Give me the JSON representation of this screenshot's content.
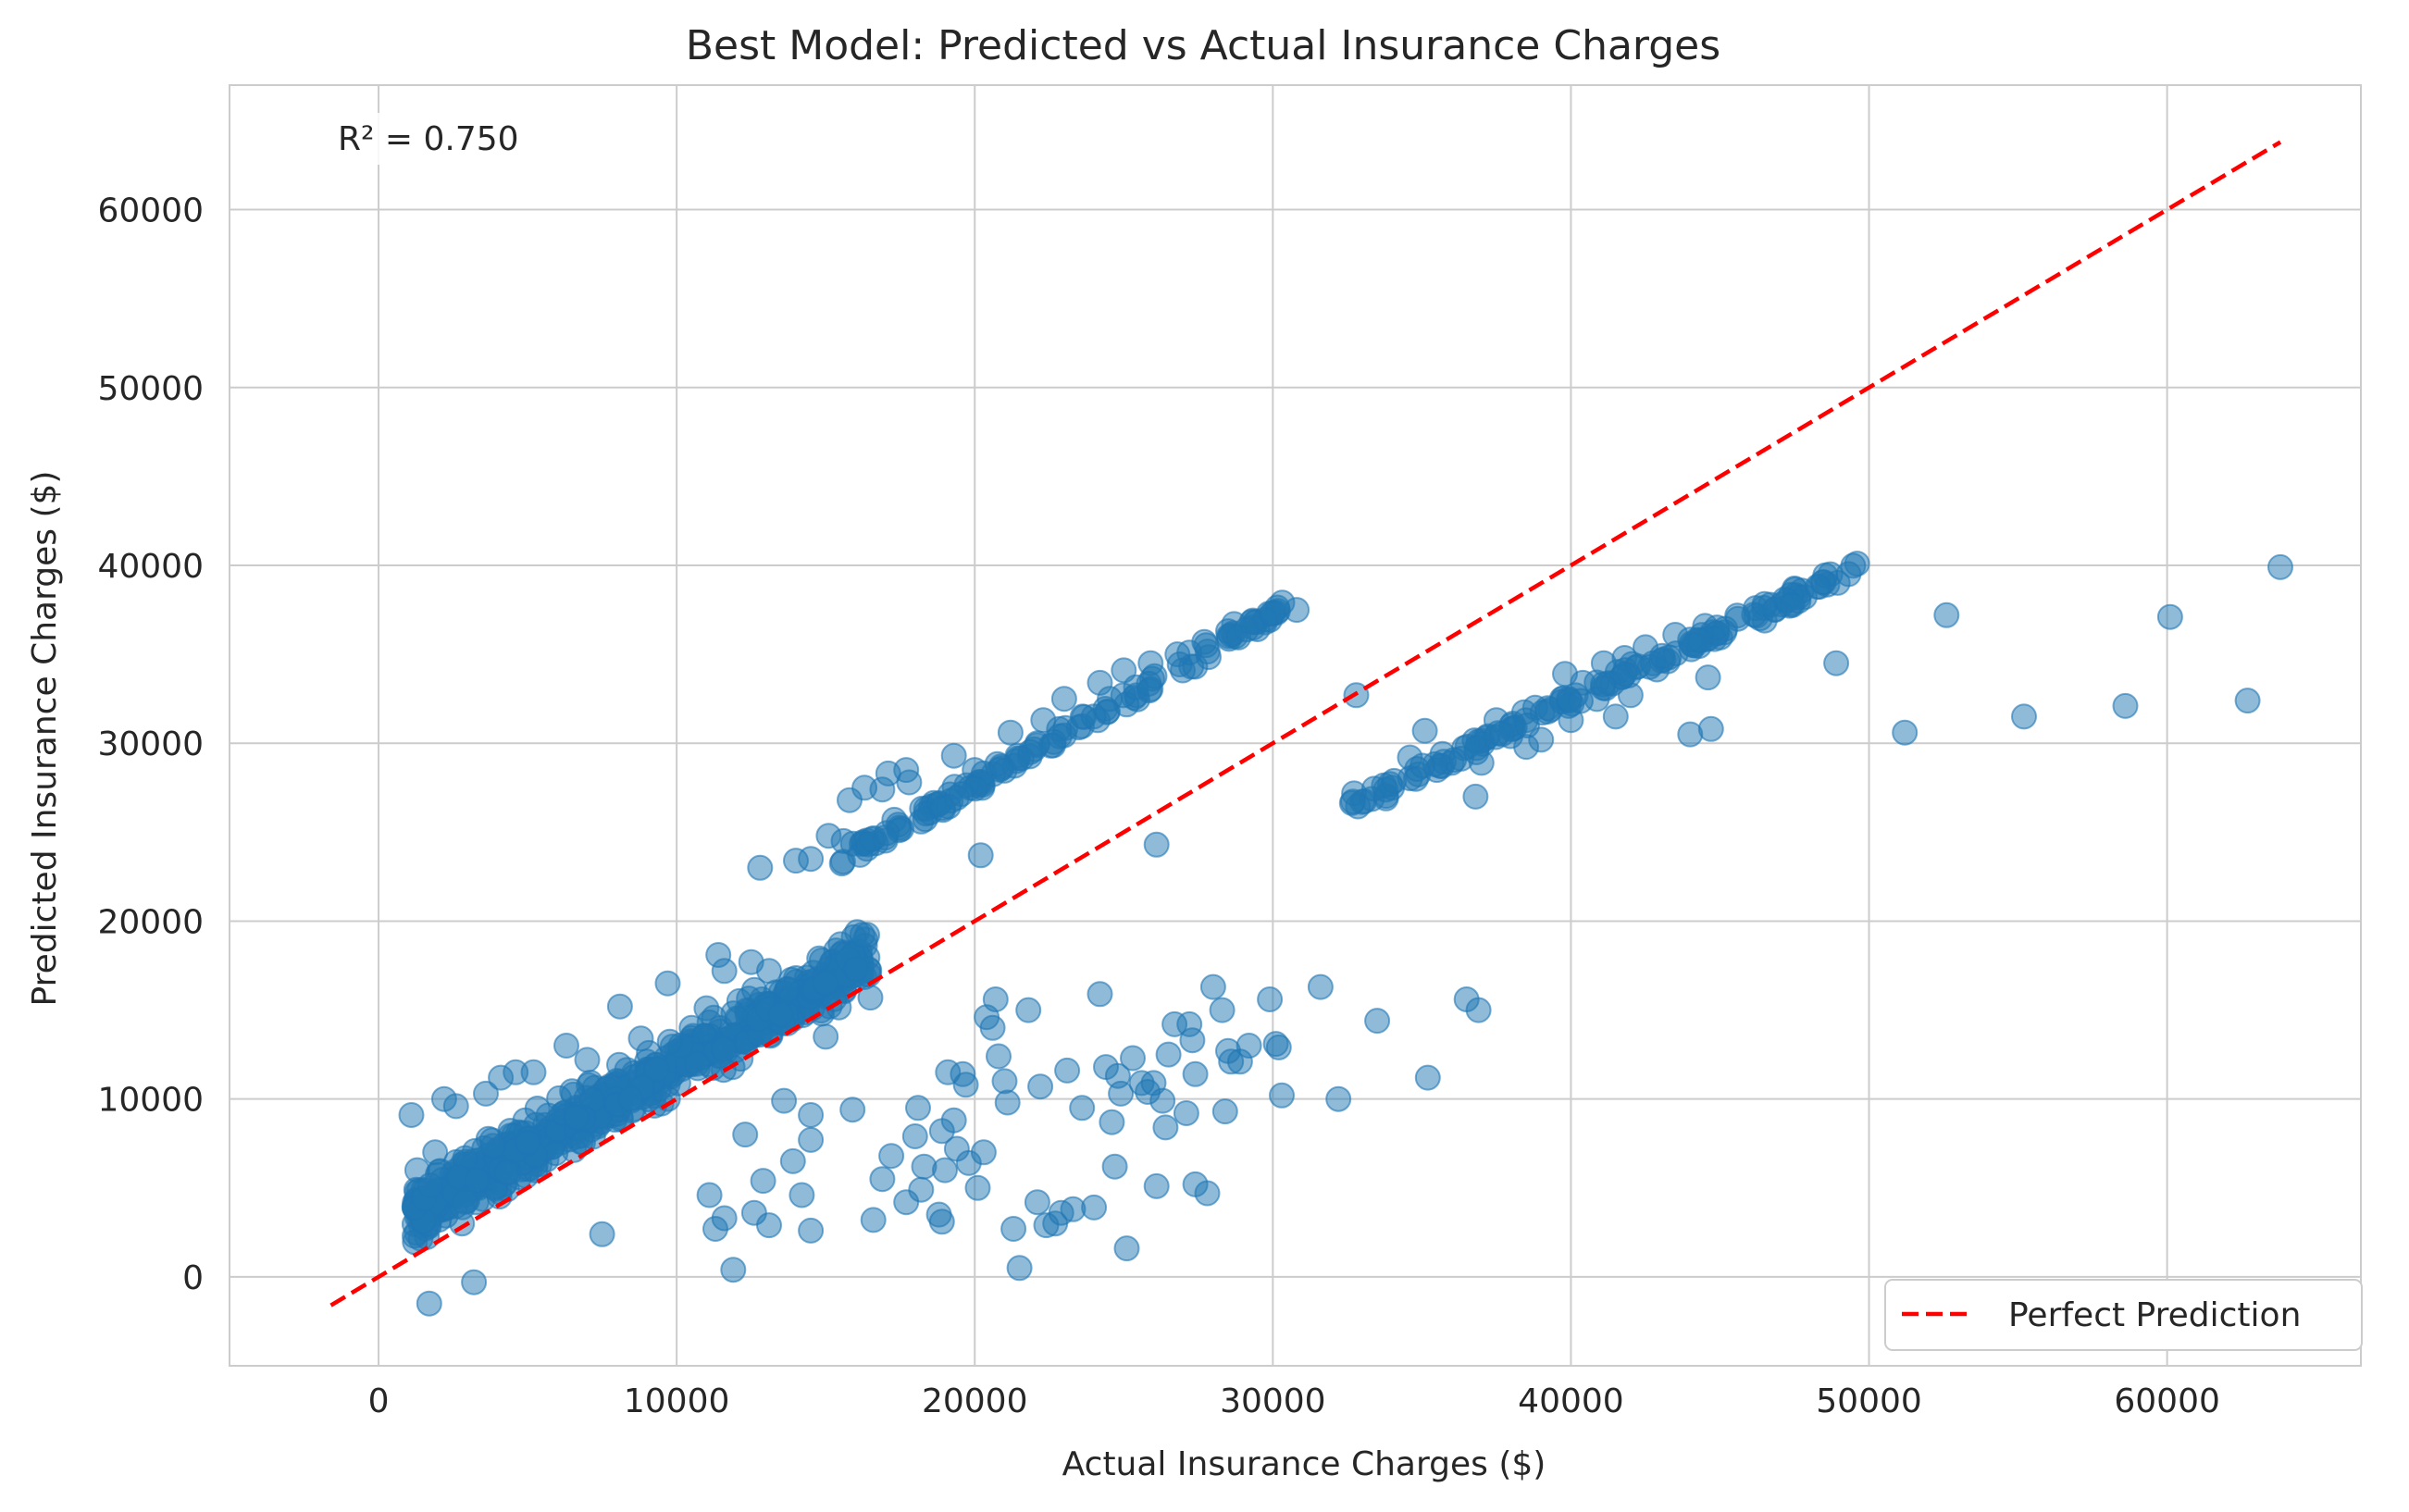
{
  "chart_data": {
    "type": "scatter",
    "title": "Best Model: Predicted vs Actual Insurance Charges",
    "xlabel": "Actual Insurance Charges ($)",
    "ylabel": "Predicted Insurance Charges ($)",
    "xlim": [
      -5000,
      66500
    ],
    "ylim": [
      -5000,
      67000
    ],
    "xticks": [
      0,
      10000,
      20000,
      30000,
      40000,
      50000,
      60000
    ],
    "yticks": [
      0,
      10000,
      20000,
      30000,
      40000,
      50000,
      60000
    ],
    "xtick_labels": [
      "0",
      "10000",
      "20000",
      "30000",
      "40000",
      "50000",
      "60000"
    ],
    "ytick_labels": [
      "0",
      "10000",
      "20000",
      "30000",
      "40000",
      "50000",
      "60000"
    ],
    "grid": true,
    "legend_position": "lower-right",
    "annotation": "R² = 0.750",
    "colors": {
      "points": "#1f77b4",
      "reference_line": "#ff0000",
      "grid": "#cccccc",
      "spine": "#cccccc"
    },
    "series": [
      {
        "kind": "points",
        "points": [
          [
            1100,
            9100
          ],
          [
            1300,
            6000
          ],
          [
            1500,
            3500
          ],
          [
            1700,
            -1500
          ],
          [
            1900,
            7000
          ],
          [
            2200,
            10000
          ],
          [
            2600,
            9600
          ],
          [
            2800,
            3000
          ],
          [
            3200,
            -300
          ],
          [
            3600,
            10300
          ],
          [
            4100,
            11200
          ],
          [
            4600,
            11500
          ],
          [
            5200,
            11500
          ],
          [
            6300,
            13000
          ],
          [
            7000,
            12200
          ],
          [
            7500,
            2400
          ],
          [
            8100,
            15200
          ],
          [
            8800,
            13400
          ],
          [
            9700,
            16500
          ],
          [
            10500,
            14000
          ],
          [
            11000,
            15100
          ],
          [
            11400,
            18100
          ],
          [
            11600,
            17200
          ],
          [
            12100,
            15500
          ],
          [
            12500,
            17700
          ],
          [
            13100,
            17200
          ],
          [
            13500,
            16000
          ],
          [
            14000,
            16800
          ],
          [
            14500,
            16000
          ],
          [
            15000,
            17000
          ],
          [
            15500,
            18700
          ],
          [
            16000,
            17500
          ],
          [
            16500,
            15700
          ],
          [
            11100,
            4600
          ],
          [
            11300,
            2700
          ],
          [
            11600,
            3300
          ],
          [
            11900,
            400
          ],
          [
            12300,
            8000
          ],
          [
            12900,
            5400
          ],
          [
            12600,
            3600
          ],
          [
            13100,
            2900
          ],
          [
            13600,
            9900
          ],
          [
            13900,
            6500
          ],
          [
            14200,
            4600
          ],
          [
            14500,
            7700
          ],
          [
            14500,
            2600
          ],
          [
            14500,
            9100
          ],
          [
            15000,
            13500
          ],
          [
            15900,
            9400
          ],
          [
            16600,
            3200
          ],
          [
            16900,
            5500
          ],
          [
            17200,
            6800
          ],
          [
            17700,
            4200
          ],
          [
            18000,
            7900
          ],
          [
            18100,
            9500
          ],
          [
            18200,
            4900
          ],
          [
            18300,
            6200
          ],
          [
            18800,
            3500
          ],
          [
            18900,
            3100
          ],
          [
            18900,
            8200
          ],
          [
            19000,
            6000
          ],
          [
            19100,
            11500
          ],
          [
            19300,
            8800
          ],
          [
            19400,
            7200
          ],
          [
            19600,
            11400
          ],
          [
            19700,
            10800
          ],
          [
            19800,
            6400
          ],
          [
            20100,
            5000
          ],
          [
            20300,
            7000
          ],
          [
            20200,
            23700
          ],
          [
            20400,
            14600
          ],
          [
            20600,
            14000
          ],
          [
            20700,
            15600
          ],
          [
            20800,
            12400
          ],
          [
            21000,
            11000
          ],
          [
            21100,
            9800
          ],
          [
            21300,
            2700
          ],
          [
            21500,
            500
          ],
          [
            21800,
            15000
          ],
          [
            22100,
            4200
          ],
          [
            22200,
            10700
          ],
          [
            22400,
            2900
          ],
          [
            22700,
            3000
          ],
          [
            22900,
            3600
          ],
          [
            23100,
            11600
          ],
          [
            23300,
            3800
          ],
          [
            23600,
            9500
          ],
          [
            24000,
            3900
          ],
          [
            24200,
            15900
          ],
          [
            24400,
            11800
          ],
          [
            24600,
            8700
          ],
          [
            24700,
            6200
          ],
          [
            24800,
            11300
          ],
          [
            24900,
            10300
          ],
          [
            25100,
            1600
          ],
          [
            25300,
            12300
          ],
          [
            25600,
            10900
          ],
          [
            25800,
            10400
          ],
          [
            26000,
            10900
          ],
          [
            26100,
            5100
          ],
          [
            26100,
            24300
          ],
          [
            26300,
            9900
          ],
          [
            26400,
            8400
          ],
          [
            26500,
            12500
          ],
          [
            26700,
            14200
          ],
          [
            27100,
            9200
          ],
          [
            27200,
            14200
          ],
          [
            27300,
            13300
          ],
          [
            27400,
            11400
          ],
          [
            27400,
            5200
          ],
          [
            27800,
            4700
          ],
          [
            28000,
            16300
          ],
          [
            28300,
            15000
          ],
          [
            28400,
            9300
          ],
          [
            28500,
            12700
          ],
          [
            28600,
            12100
          ],
          [
            28900,
            12100
          ],
          [
            29200,
            13000
          ],
          [
            29900,
            15600
          ],
          [
            30100,
            13100
          ],
          [
            30200,
            12900
          ],
          [
            30300,
            10200
          ],
          [
            31600,
            16300
          ],
          [
            32200,
            10000
          ],
          [
            33500,
            14400
          ],
          [
            35200,
            11200
          ],
          [
            36500,
            15600
          ],
          [
            36900,
            15000
          ],
          [
            44000,
            30500
          ],
          [
            44700,
            30800
          ],
          [
            44600,
            33700
          ],
          [
            48900,
            34500
          ],
          [
            51200,
            30600
          ],
          [
            52600,
            37200
          ],
          [
            55200,
            31500
          ],
          [
            58600,
            32100
          ],
          [
            60100,
            37100
          ],
          [
            62700,
            32400
          ],
          [
            63800,
            39900
          ],
          [
            32800,
            32700
          ],
          [
            39000,
            30200
          ],
          [
            40000,
            31300
          ],
          [
            41500,
            31500
          ],
          [
            42000,
            32700
          ],
          [
            12800,
            23000
          ],
          [
            14000,
            23400
          ],
          [
            14500,
            23500
          ],
          [
            15100,
            24800
          ],
          [
            15600,
            24500
          ],
          [
            17300,
            25700
          ],
          [
            18200,
            25600
          ],
          [
            20000,
            28500
          ],
          [
            16900,
            27400
          ],
          [
            17700,
            28500
          ],
          [
            19300,
            29300
          ],
          [
            30800,
            37500
          ],
          [
            29400,
            36800
          ],
          [
            28700,
            36700
          ],
          [
            27200,
            35100
          ],
          [
            36800,
            27000
          ],
          [
            36900,
            30100
          ],
          [
            37500,
            31300
          ],
          [
            35100,
            30700
          ],
          [
            34600,
            29200
          ],
          [
            38500,
            29800
          ],
          [
            39800,
            33900
          ],
          [
            40400,
            33400
          ],
          [
            41100,
            34500
          ],
          [
            45600,
            37000
          ],
          [
            46200,
            37600
          ],
          [
            46500,
            36900
          ],
          [
            49600,
            40100
          ],
          [
            48700,
            39500
          ],
          [
            47500,
            38700
          ],
          [
            15800,
            26800
          ],
          [
            16300,
            27500
          ],
          [
            17100,
            28300
          ],
          [
            17800,
            27800
          ],
          [
            18500,
            26100
          ],
          [
            21200,
            30600
          ],
          [
            22300,
            31300
          ],
          [
            23000,
            32500
          ],
          [
            24200,
            33400
          ],
          [
            25000,
            34100
          ],
          [
            25900,
            34500
          ],
          [
            26800,
            35000
          ],
          [
            27700,
            35700
          ],
          [
            28500,
            36300
          ],
          [
            33000,
            26700
          ],
          [
            34000,
            27500
          ],
          [
            34800,
            28000
          ],
          [
            36000,
            28900
          ],
          [
            37000,
            28900
          ],
          [
            38000,
            31000
          ],
          [
            38800,
            32000
          ],
          [
            39700,
            32500
          ],
          [
            41800,
            34800
          ],
          [
            42500,
            35400
          ],
          [
            43500,
            36100
          ],
          [
            44500,
            36600
          ],
          [
            33800,
            26900
          ],
          [
            35500,
            28500
          ]
        ],
        "band": {
          "description_none": true,
          "x_range": [
            1200,
            16500
          ],
          "slope": 0.95,
          "intercept": 2400,
          "spread": 1500,
          "count": 700
        },
        "upper_branch": {
          "x_range": [
            15500,
            30500
          ],
          "slope": 0.955,
          "intercept": 8600,
          "spread": 450,
          "count": 120
        },
        "right_branch": {
          "x_range": [
            32600,
            49500
          ],
          "slope": 0.78,
          "intercept": 1200,
          "spread": 500,
          "count": 130
        }
      },
      {
        "name": "Perfect Prediction",
        "kind": "line",
        "style": "dashed",
        "x": [
          -1600,
          63800
        ],
        "y": [
          -1600,
          63800
        ]
      }
    ]
  }
}
